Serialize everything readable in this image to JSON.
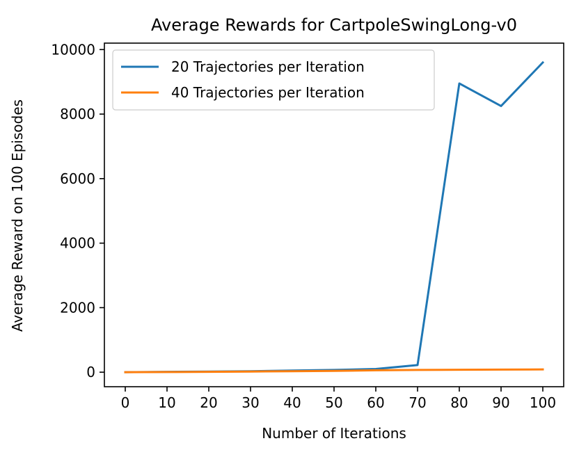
{
  "chart_data": {
    "type": "line",
    "title": "Average Rewards for CartpoleSwingLong-v0",
    "xlabel": "Number of Iterations",
    "ylabel": "Average Reward on 100 Episodes",
    "x": [
      0,
      10,
      20,
      30,
      40,
      50,
      60,
      70,
      80,
      90,
      100
    ],
    "xlim": [
      -5,
      105
    ],
    "ylim": [
      -450,
      10200
    ],
    "xticks": [
      0,
      10,
      20,
      30,
      40,
      50,
      60,
      70,
      80,
      90,
      100
    ],
    "yticks": [
      0,
      2000,
      4000,
      6000,
      8000,
      10000
    ],
    "grid": false,
    "legend_position": "upper left",
    "series": [
      {
        "name": "20 Trajectories per Iteration",
        "color": "#1f77b4",
        "values": [
          0,
          10,
          20,
          30,
          50,
          70,
          100,
          220,
          8950,
          8250,
          9600
        ]
      },
      {
        "name": "40 Trajectories per Iteration",
        "color": "#ff7f0e",
        "values": [
          0,
          5,
          10,
          20,
          30,
          40,
          60,
          70,
          75,
          80,
          85
        ]
      }
    ]
  }
}
